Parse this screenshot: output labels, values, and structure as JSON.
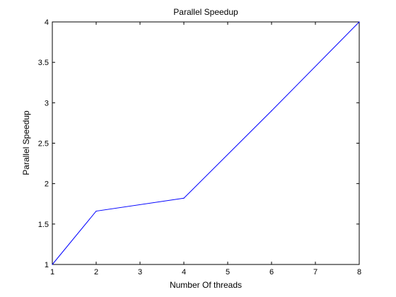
{
  "chart_data": {
    "type": "line",
    "title": "Parallel Speedup",
    "xlabel": "Number Of threads",
    "ylabel": "Parallel Speedup",
    "xlim": [
      1,
      8
    ],
    "ylim": [
      1,
      4
    ],
    "xticks": [
      1,
      2,
      3,
      4,
      5,
      6,
      7,
      8
    ],
    "yticks": [
      1,
      1.5,
      2,
      2.5,
      3,
      3.5,
      4
    ],
    "grid": false,
    "legend": "none",
    "series": [
      {
        "x": [
          1,
          2,
          4,
          6,
          8
        ],
        "y": [
          1.0,
          1.66,
          1.82,
          2.9,
          4.0
        ],
        "color": "#0000ff"
      }
    ]
  }
}
